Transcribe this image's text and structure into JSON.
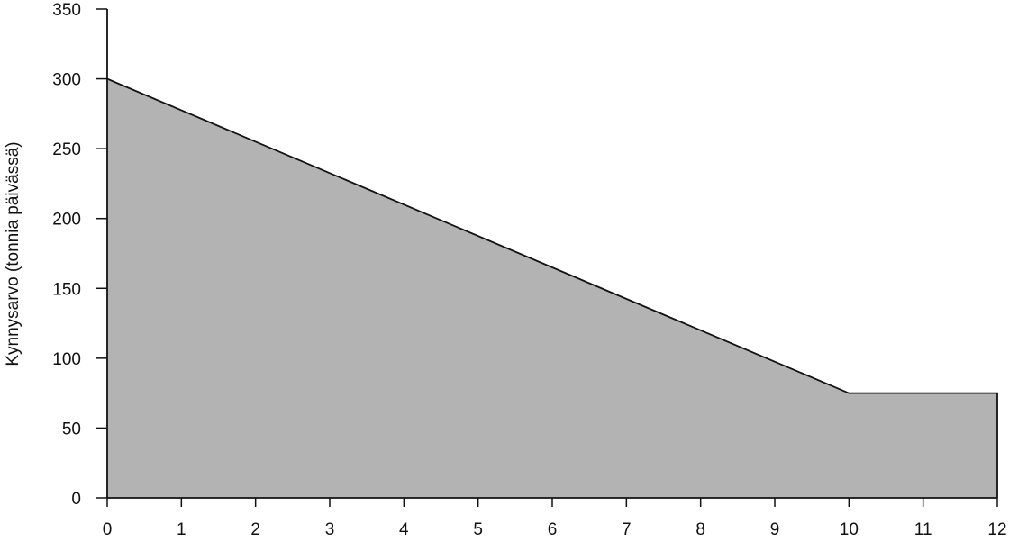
{
  "chart_data": {
    "type": "area",
    "title": "",
    "xlabel": "",
    "ylabel": "Kynnysarvo (tonnia päivässä)",
    "x": [
      0,
      10,
      12
    ],
    "y": [
      300,
      75,
      75
    ],
    "xlim": [
      0,
      12
    ],
    "ylim": [
      0,
      350
    ],
    "xticks": [
      "0",
      "1",
      "2",
      "3",
      "4",
      "5",
      "6",
      "7",
      "8",
      "9",
      "10",
      "11",
      "12"
    ],
    "yticks": [
      "0",
      "50",
      "100",
      "150",
      "200",
      "250",
      "300",
      "350"
    ],
    "grid": false,
    "legend": "none",
    "fill_color": "#b3b3b3",
    "line_color": "#111111"
  }
}
